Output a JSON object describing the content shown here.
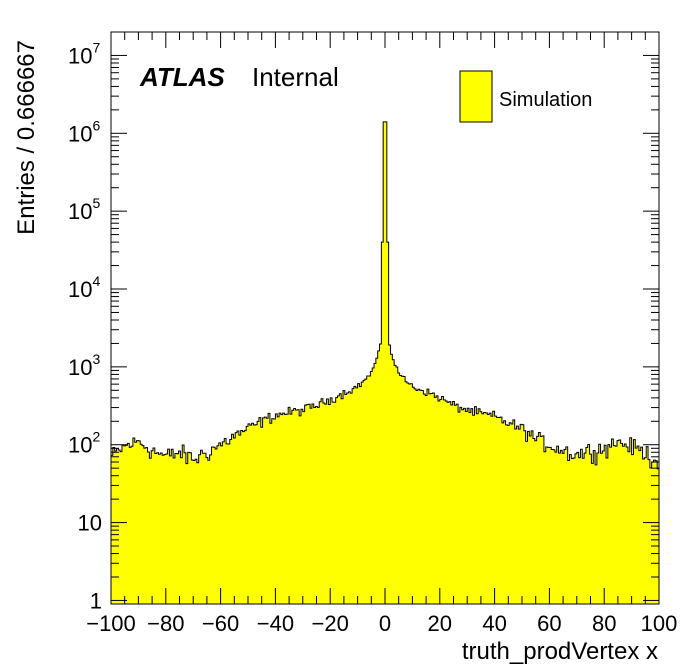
{
  "chart_data": {
    "type": "bar",
    "title": "",
    "xlabel": "truth_prodVertex x",
    "ylabel": "Entries / 0.666667",
    "xlim": [
      -100,
      100
    ],
    "ylim": [
      0.9,
      20000000
    ],
    "log_y": true,
    "grid": false,
    "fill_color": "#ffff00",
    "line_color": "#000000",
    "atlas_label": {
      "bold": "ATLAS",
      "normal": "Internal"
    },
    "legend": {
      "position": "top-right",
      "entries": [
        "Simulation"
      ]
    },
    "x_ticks": [
      "−100",
      "−80",
      "−60",
      "−40",
      "−20",
      "0",
      "20",
      "40",
      "60",
      "80",
      "100"
    ],
    "y_ticks": [
      {
        "value": 1,
        "base": "1",
        "exp": ""
      },
      {
        "value": 10,
        "base": "10",
        "exp": ""
      },
      {
        "value": 100,
        "base": "10",
        "exp": "2"
      },
      {
        "value": 1000,
        "base": "10",
        "exp": "3"
      },
      {
        "value": 10000,
        "base": "10",
        "exp": "4"
      },
      {
        "value": 100000,
        "base": "10",
        "exp": "5"
      },
      {
        "value": 1000000,
        "base": "10",
        "exp": "6"
      },
      {
        "value": 10000000,
        "base": "10",
        "exp": "7"
      }
    ],
    "bin_width": 0.666667,
    "profile": [
      [
        -100,
        70
      ],
      [
        -95,
        95
      ],
      [
        -90,
        110
      ],
      [
        -85,
        85
      ],
      [
        -80,
        70
      ],
      [
        -75,
        80
      ],
      [
        -70,
        65
      ],
      [
        -65,
        80
      ],
      [
        -60,
        100
      ],
      [
        -55,
        130
      ],
      [
        -50,
        160
      ],
      [
        -45,
        200
      ],
      [
        -40,
        240
      ],
      [
        -35,
        260
      ],
      [
        -30,
        280
      ],
      [
        -25,
        320
      ],
      [
        -20,
        380
      ],
      [
        -15,
        460
      ],
      [
        -10,
        560
      ],
      [
        -6,
        750
      ],
      [
        -4,
        1000
      ],
      [
        -2,
        1600
      ],
      [
        -1,
        3000
      ],
      [
        -0.5,
        60000
      ],
      [
        0,
        1400000
      ],
      [
        0.5,
        60000
      ],
      [
        1,
        3000
      ],
      [
        2,
        1600
      ],
      [
        4,
        1000
      ],
      [
        6,
        750
      ],
      [
        10,
        560
      ],
      [
        15,
        480
      ],
      [
        20,
        400
      ],
      [
        25,
        320
      ],
      [
        30,
        280
      ],
      [
        35,
        250
      ],
      [
        40,
        230
      ],
      [
        45,
        190
      ],
      [
        50,
        160
      ],
      [
        55,
        120
      ],
      [
        60,
        100
      ],
      [
        65,
        85
      ],
      [
        70,
        75
      ],
      [
        75,
        85
      ],
      [
        80,
        90
      ],
      [
        85,
        110
      ],
      [
        90,
        95
      ],
      [
        95,
        80
      ],
      [
        100,
        60
      ]
    ]
  }
}
